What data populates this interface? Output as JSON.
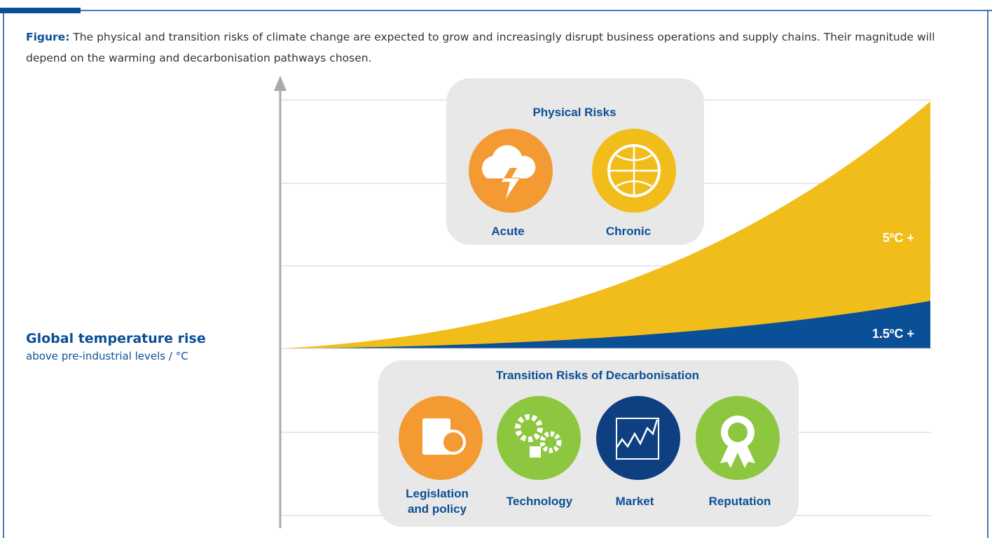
{
  "figure": {
    "label": "Figure:",
    "caption": "The physical and transition risks of climate change are expected to grow and increasingly disrupt business operations and supply chains. Their magnitude will depend on the warming and decarbonisation pathways chosen."
  },
  "axis": {
    "title": "Global temperature rise",
    "subtitle": "above pre-industrial levels / °C"
  },
  "scenarios": [
    "5ºC +",
    "1.5ºC +"
  ],
  "physical": {
    "title": "Physical Risks",
    "items": [
      "Acute",
      "Chronic"
    ]
  },
  "transition": {
    "title": "Transition Risks of Decarbonisation",
    "items": [
      "Legislation and policy",
      "Technology",
      "Market",
      "Reputation"
    ]
  }
}
